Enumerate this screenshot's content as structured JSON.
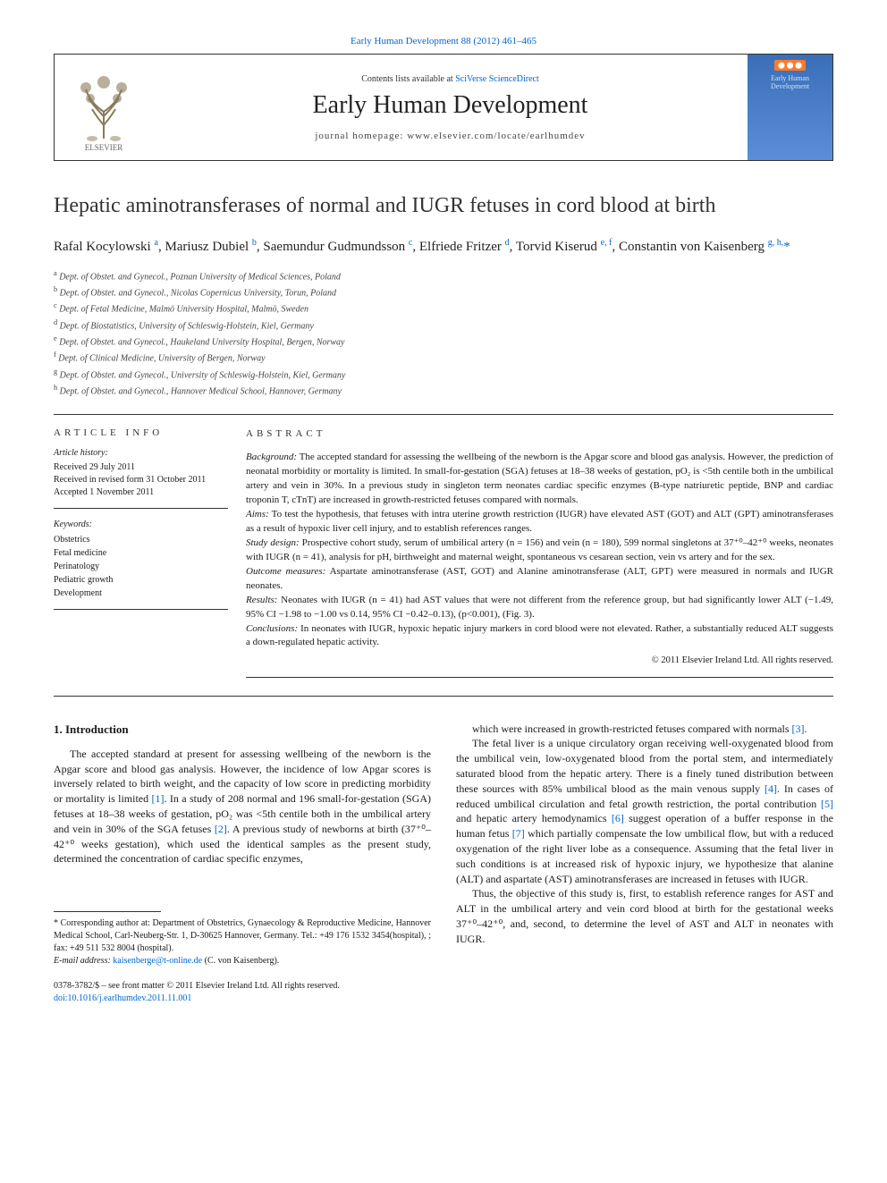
{
  "top_citation": "Early Human Development 88 (2012) 461–465",
  "header": {
    "contents_prefix": "Contents lists available at ",
    "contents_link": "SciVerse ScienceDirect",
    "journal_name": "Early Human Development",
    "homepage": "journal homepage: www.elsevier.com/locate/earlhumdev",
    "cover_badge": "⬤ ⬤ ⬤",
    "cover_text": "Early Human Development"
  },
  "title": "Hepatic aminotransferases of normal and IUGR fetuses in cord blood at birth",
  "authors_html": "Rafal Kocylowski <sup>a</sup>, Mariusz Dubiel <sup>b</sup>, Saemundur Gudmundsson <sup>c</sup>, Elfriede Fritzer <sup>d</sup>, Torvid Kiserud <sup>e, f</sup>, Constantin von Kaisenberg <sup>g, h,</sup><span class='star'>*</span>",
  "affiliations": [
    "a  Dept. of Obstet. and Gynecol., Poznan University of Medical Sciences, Poland",
    "b  Dept. of Obstet. and Gynecol., Nicolas Copernicus University, Torun, Poland",
    "c  Dept. of Fetal Medicine, Malmö University Hospital, Malmö, Sweden",
    "d  Dept. of Biostatistics, University of Schleswig-Holstein, Kiel, Germany",
    "e  Dept. of Obstet. and Gynecol., Haukeland University Hospital, Bergen, Norway",
    "f  Dept. of Clinical Medicine, University of Bergen, Norway",
    "g  Dept. of Obstet. and Gynecol., University of Schleswig-Holstein, Kiel, Germany",
    "h  Dept. of Obstet. and Gynecol., Hannover Medical School, Hannover, Germany"
  ],
  "article_info": {
    "heading": "ARTICLE INFO",
    "history_label": "Article history:",
    "history": [
      "Received 29 July 2011",
      "Received in revised form 31 October 2011",
      "Accepted 1 November 2011"
    ],
    "keywords_label": "Keywords:",
    "keywords": [
      "Obstetrics",
      "Fetal medicine",
      "Perinatology",
      "Pediatric growth",
      "Development"
    ]
  },
  "abstract": {
    "heading": "ABSTRACT",
    "background_label": "Background:",
    "background": " The accepted standard for assessing the wellbeing of the newborn is the Apgar score and blood gas analysis. However, the prediction of neonatal morbidity or mortality is limited. In small-for-gestation (SGA) fetuses at 18–38 weeks of gestation, pO₂ is <5th centile both in the umbilical artery and vein in 30%. In a previous study in singleton term neonates cardiac specific enzymes (B-type natriuretic peptide, BNP and cardiac troponin T, cTnT) are increased in growth-restricted fetuses compared with normals.",
    "aims_label": "Aims:",
    "aims": " To test the hypothesis, that fetuses with intra uterine growth restriction (IUGR) have elevated AST (GOT) and ALT (GPT) aminotransferases as a result of hypoxic liver cell injury, and to establish references ranges.",
    "design_label": "Study design:",
    "design": " Prospective cohort study, serum of umbilical artery (n = 156) and vein (n = 180), 599 normal singletons at 37⁺⁰–42⁺⁰ weeks, neonates with IUGR (n = 41), analysis for pH, birthweight and maternal weight, spontaneous vs cesarean section, vein vs artery and for the sex.",
    "outcome_label": "Outcome measures:",
    "outcome": " Aspartate aminotransferase (AST, GOT) and Alanine aminotransferase (ALT, GPT) were measured in normals and IUGR neonates.",
    "results_label": "Results:",
    "results": " Neonates with IUGR (n = 41) had AST values that were not different from the reference group, but had significantly lower ALT (−1.49, 95% CI −1.98 to −1.00 vs 0.14, 95% CI −0.42–0.13), (p<0.001), (Fig. 3).",
    "conclusions_label": "Conclusions:",
    "conclusions": " In neonates with IUGR, hypoxic hepatic injury markers in cord blood were not elevated. Rather, a substantially reduced ALT suggests a down-regulated hepatic activity.",
    "copyright": "© 2011 Elsevier Ireland Ltd. All rights reserved."
  },
  "body": {
    "intro_heading": "1. Introduction",
    "col1_p1": "The accepted standard at present for assessing wellbeing of the newborn is the Apgar score and blood gas analysis. However, the incidence of low Apgar scores is inversely related to birth weight, and the capacity of low score in predicting morbidity or mortality is limited [1]. In a study of 208 normal and 196 small-for-gestation (SGA) fetuses at 18–38 weeks of gestation, pO₂ was <5th centile both in the umbilical artery and vein in 30% of the SGA fetuses [2]. A previous study of newborns at birth (37⁺⁰–42⁺⁰ weeks gestation), which used the identical samples as the present study, determined the concentration of cardiac specific enzymes,",
    "col2_p1": "which were increased in growth-restricted fetuses compared with normals [3].",
    "col2_p2": "The fetal liver is a unique circulatory organ receiving well-oxygenated blood from the umbilical vein, low-oxygenated blood from the portal stem, and intermediately saturated blood from the hepatic artery. There is a finely tuned distribution between these sources with 85% umbilical blood as the main venous supply [4]. In cases of reduced umbilical circulation and fetal growth restriction, the portal contribution [5] and hepatic artery hemodynamics [6] suggest operation of a buffer response in the human fetus [7] which partially compensate the low umbilical flow, but with a reduced oxygenation of the right liver lobe as a consequence. Assuming that the fetal liver in such conditions is at increased risk of hypoxic injury, we hypothesize that alanine (ALT) and aspartate (AST) aminotransferases are increased in fetuses with IUGR.",
    "col2_p3": "Thus, the objective of this study is, first, to establish reference ranges for AST and ALT in the umbilical artery and vein cord blood at birth for the gestational weeks 37⁺⁰–42⁺⁰, and, second, to determine the level of AST and ALT in neonates with IUGR."
  },
  "footnote": {
    "corr": "* Corresponding author at: Department of Obstetrics, Gynaecology & Reproductive Medicine, Hannover Medical School, Carl-Neuberg-Str. 1, D-30625 Hannover, Germany. Tel.: +49 176 1532 3454(hospital), ; fax: +49 511 532 8004 (hospital).",
    "email_label": "E-mail address: ",
    "email": "kaisenberge@t-online.de",
    "email_suffix": " (C. von Kaisenberg)."
  },
  "bottom": {
    "line1": "0378-3782/$ – see front matter © 2011 Elsevier Ireland Ltd. All rights reserved.",
    "doi": "doi:10.1016/j.earlhumdev.2011.11.001"
  },
  "colors": {
    "link": "#0066cc",
    "text": "#1a1a1a",
    "rule": "#333333",
    "cover_bg_top": "#3a6fb8",
    "cover_bg_bottom": "#5a8fd8",
    "cover_badge": "#ff7a2a"
  },
  "typography": {
    "title_fontsize": 24,
    "journal_fontsize": 28,
    "body_fontsize": 12,
    "abstract_fontsize": 11,
    "affil_fontsize": 10,
    "footnote_fontsize": 10
  }
}
